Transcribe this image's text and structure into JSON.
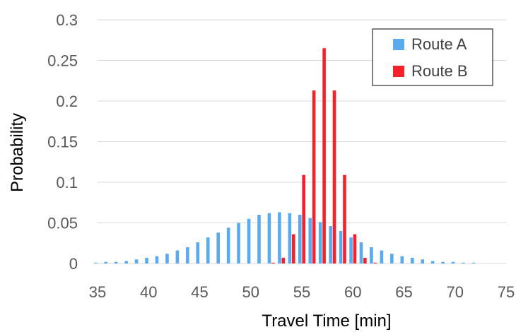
{
  "chart_data": {
    "type": "bar",
    "xlabel": "Travel Time [min]",
    "ylabel": "Probability",
    "xlim": [
      35,
      75
    ],
    "ylim": [
      0,
      0.3
    ],
    "x_ticks": [
      "35",
      "40",
      "45",
      "50",
      "55",
      "60",
      "65",
      "70",
      "75"
    ],
    "y_ticks": [
      "0",
      "0.05",
      "0.1",
      "0.15",
      "0.2",
      "0.25",
      "0.3"
    ],
    "grid": true,
    "legend_position": "top-right",
    "x": [
      35,
      36,
      37,
      38,
      39,
      40,
      41,
      42,
      43,
      44,
      45,
      46,
      47,
      48,
      49,
      50,
      51,
      52,
      53,
      54,
      55,
      56,
      57,
      58,
      59,
      60,
      61,
      62,
      63,
      64,
      65,
      66,
      67,
      68,
      69,
      70,
      71,
      72
    ],
    "series": [
      {
        "name": "Route A",
        "color": "#5aaaf0",
        "values": [
          0.001,
          0.002,
          0.002,
          0.003,
          0.005,
          0.007,
          0.009,
          0.012,
          0.016,
          0.02,
          0.026,
          0.032,
          0.038,
          0.044,
          0.05,
          0.055,
          0.06,
          0.062,
          0.063,
          0.062,
          0.06,
          0.056,
          0.051,
          0.046,
          0.04,
          0.032,
          0.026,
          0.02,
          0.016,
          0.012,
          0.009,
          0.007,
          0.005,
          0.003,
          0.002,
          0.002,
          0.001,
          0.001
        ]
      },
      {
        "name": "Route B",
        "color": "#f5222d",
        "values": [
          0,
          0,
          0,
          0,
          0,
          0,
          0,
          0,
          0,
          0,
          0,
          0,
          0,
          0,
          0,
          0,
          0,
          0.001,
          0.007,
          0.036,
          0.109,
          0.213,
          0.265,
          0.213,
          0.109,
          0.036,
          0.007,
          0.001,
          0,
          0,
          0,
          0,
          0,
          0,
          0,
          0,
          0,
          0
        ]
      }
    ]
  }
}
